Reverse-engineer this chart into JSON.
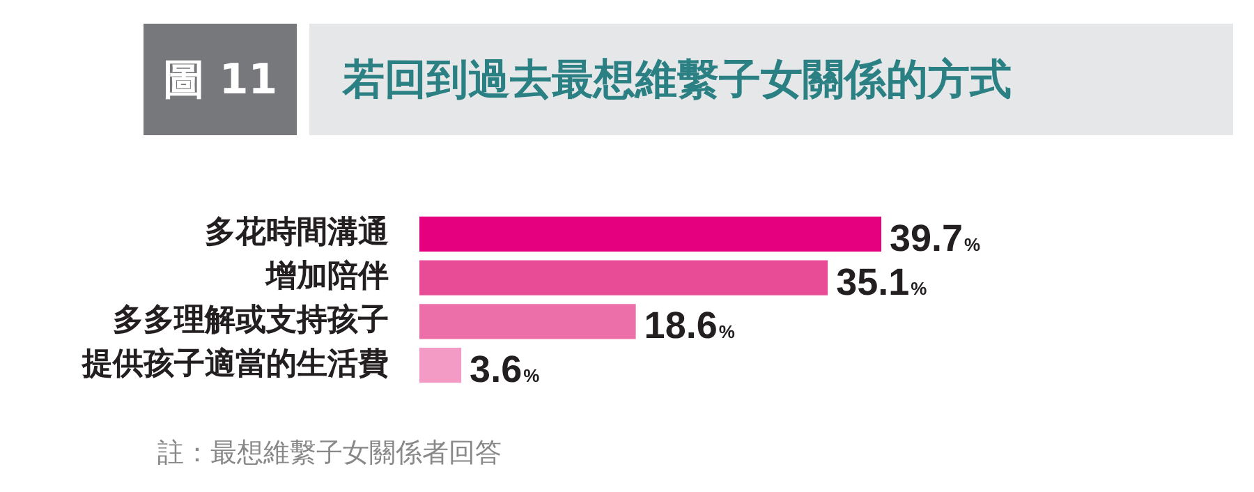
{
  "chart_data": {
    "type": "bar",
    "orientation": "horizontal",
    "title": "若回到過去最想維繫子女關係的方式",
    "categories": [
      "多花時間溝通",
      "增加陪伴",
      "多多理解或支持孩子",
      "提供孩子適當的生活費"
    ],
    "values": [
      39.7,
      35.1,
      18.6,
      3.6
    ],
    "colors": [
      "#e4007f",
      "#e84c97",
      "#ed6faa",
      "#f39bc4"
    ],
    "value_labels": [
      "39.7%",
      "35.1%",
      "18.6%",
      "3.6%"
    ],
    "annotations": [
      "圖 11",
      "註：最想維繫子女關係者回答"
    ]
  }
}
